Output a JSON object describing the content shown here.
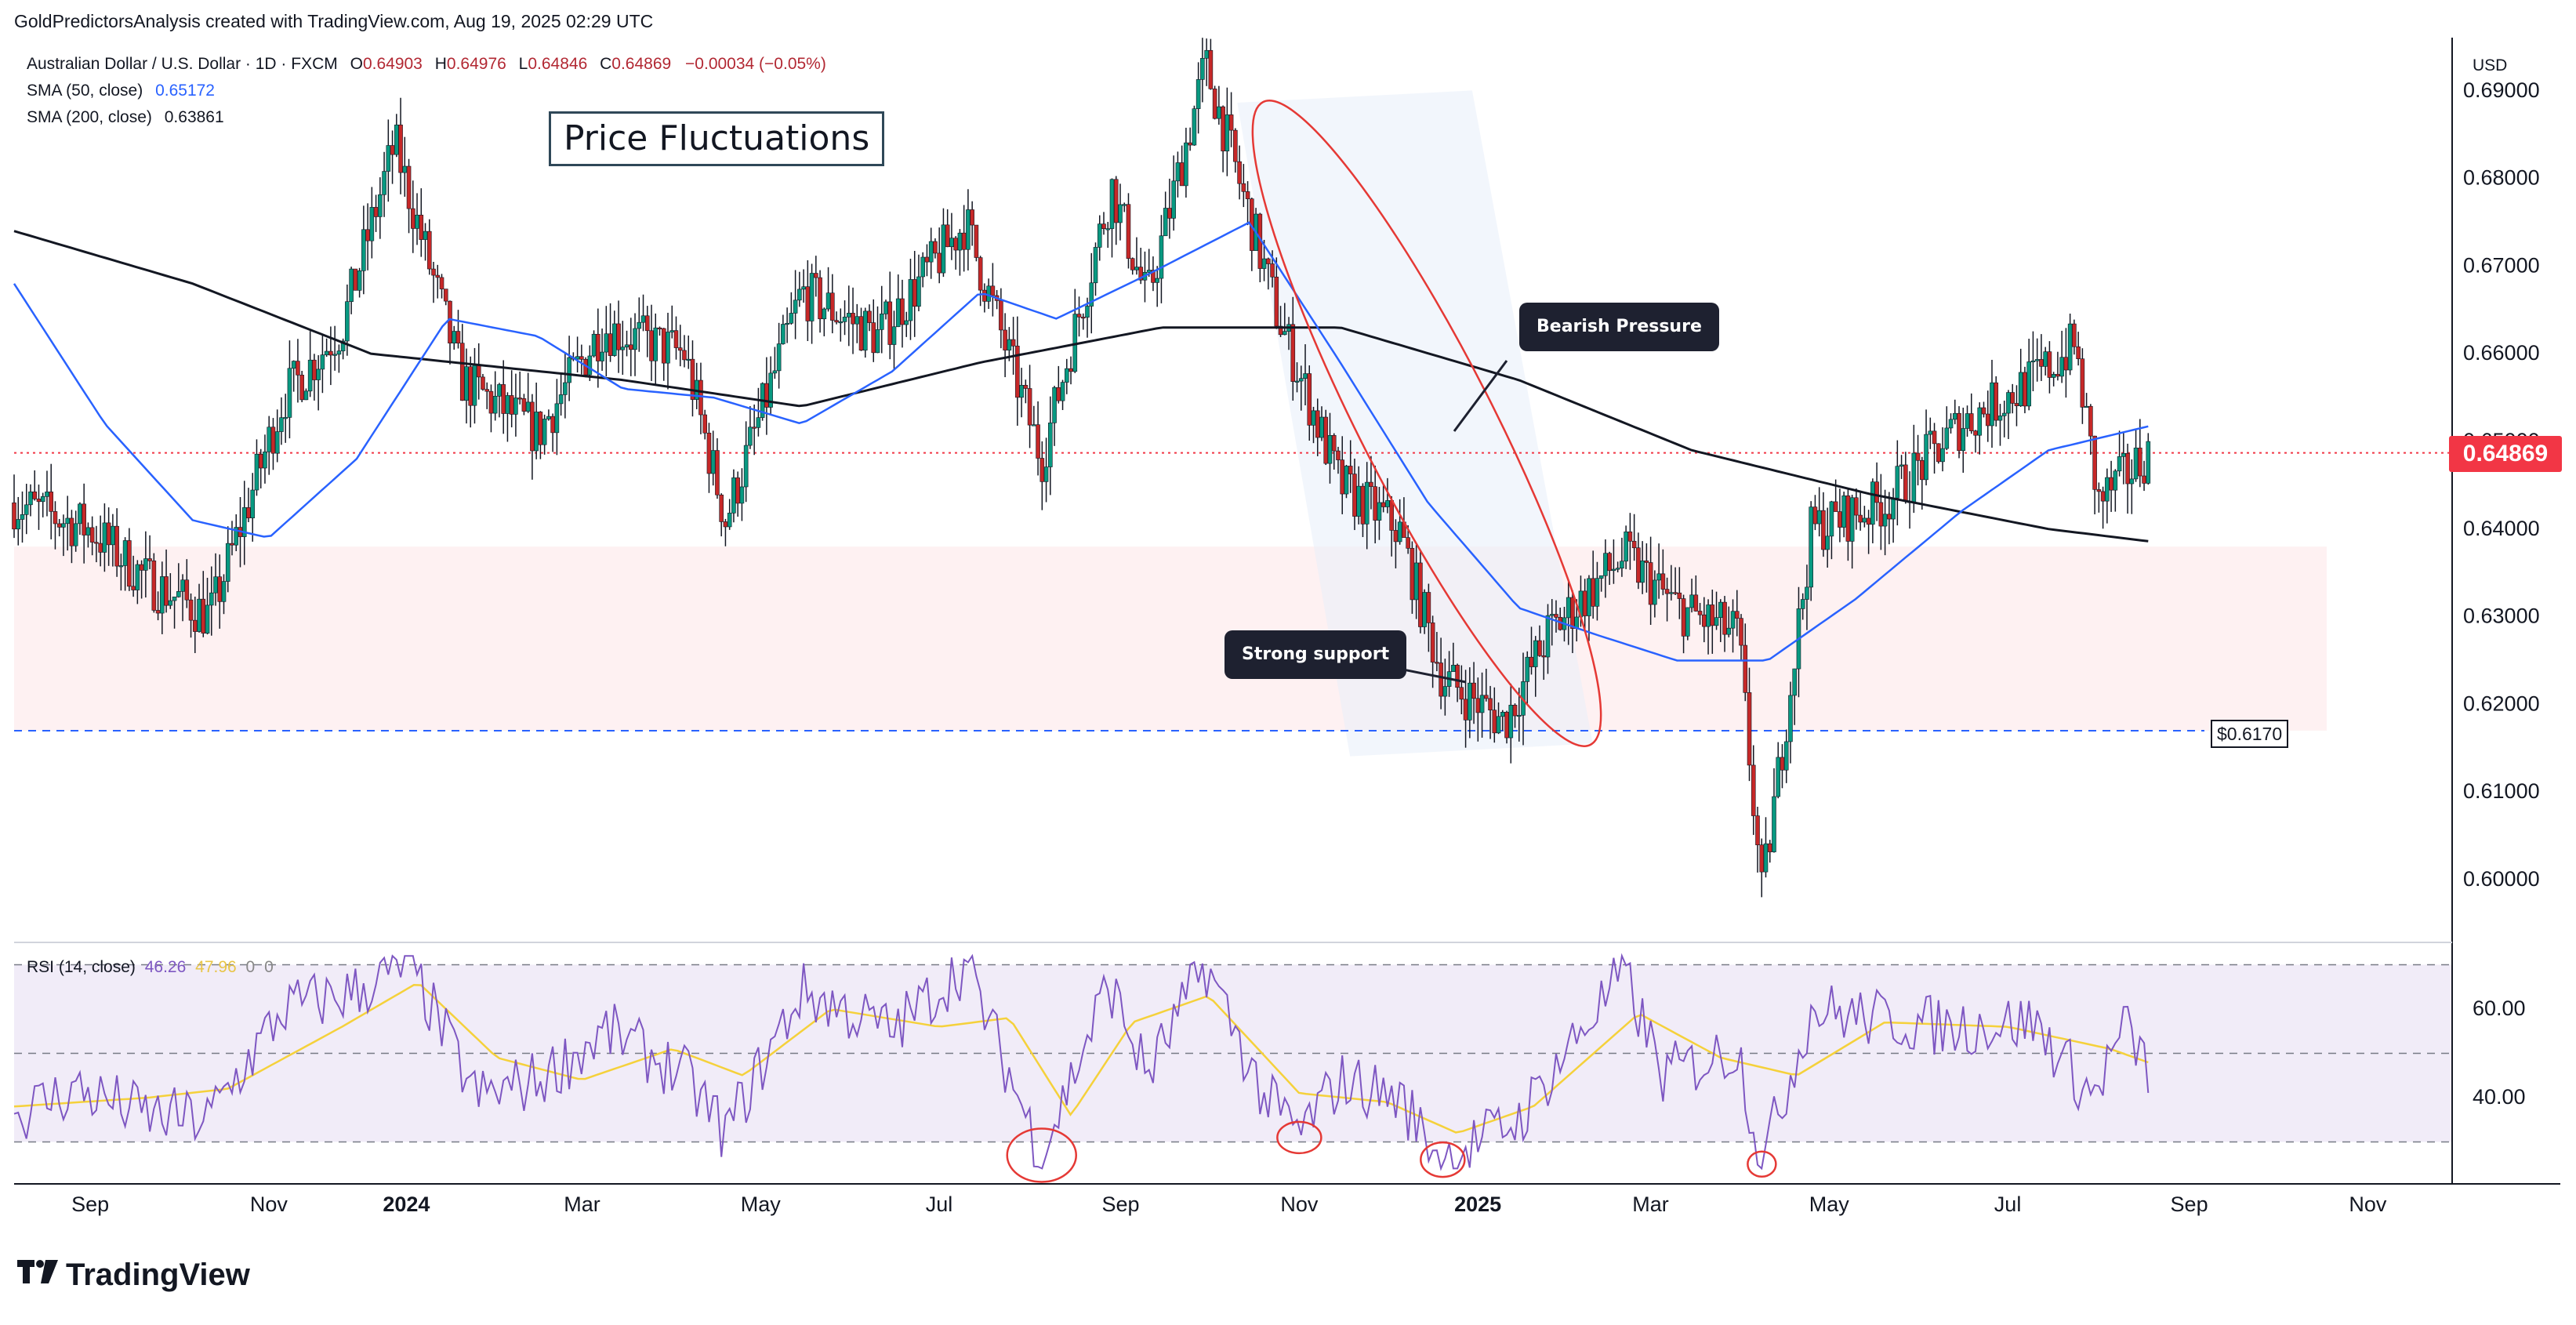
{
  "header": {
    "attribution": "GoldPredictorsAnalysis created with TradingView.com, Aug 19, 2025 02:29 UTC",
    "instrument": "Australian Dollar / U.S. Dollar · 1D · FXCM",
    "open_label": "O",
    "open": "0.64903",
    "high_label": "H",
    "high": "0.64976",
    "low_label": "L",
    "low": "0.64846",
    "close_label": "C",
    "close": "0.64869",
    "change": "−0.00034 (−0.05%)"
  },
  "indicators": {
    "sma50_label": "SMA (50, close)",
    "sma50_value": "0.65172",
    "sma200_label": "SMA (200, close)",
    "sma200_value": "0.63861"
  },
  "currency": "USD",
  "annotations": {
    "title": "Price Fluctuations",
    "bearish": "Bearish Pressure",
    "support": "Strong support",
    "support_level": "$0.6170",
    "last_price": "0.64869"
  },
  "rsi": {
    "label": "RSI (14, close)",
    "value": "46.26",
    "ma_value": "47.96",
    "extra1": "0",
    "extra2": "0"
  },
  "colors": {
    "sma50": "#2962ff",
    "sma200": "#131722",
    "up": "#089981",
    "down": "#c62828",
    "rsi": "#7e57c2",
    "rsi_ma": "#f5d13b",
    "accent_red": "#f23645"
  },
  "footer": {
    "brand": "TradingView",
    "brand_icon": "tradingview-logo-icon"
  },
  "chart_data": [
    {
      "type": "line",
      "title": "",
      "x_axis_ticks": [
        "Sep",
        "Nov",
        "2024",
        "Mar",
        "May",
        "Jul",
        "Sep",
        "Nov",
        "2025",
        "Mar",
        "May",
        "Jul",
        "Sep",
        "Nov"
      ],
      "y_axis_ticks": [
        "0.60000",
        "0.61000",
        "0.62000",
        "0.63000",
        "0.64000",
        "0.65000",
        "0.66000",
        "0.67000",
        "0.68000",
        "0.69000"
      ],
      "ylim": [
        0.593,
        0.697
      ],
      "price_anchors": {
        "description": "approximate daily close path (date, value)",
        "points": [
          [
            "2023-08-20",
            0.643
          ],
          [
            "2023-09-15",
            0.64
          ],
          [
            "2023-10-05",
            0.634
          ],
          [
            "2023-10-26",
            0.63
          ],
          [
            "2023-11-20",
            0.655
          ],
          [
            "2023-12-10",
            0.663
          ],
          [
            "2023-12-28",
            0.684
          ],
          [
            "2024-01-20",
            0.657
          ],
          [
            "2024-02-15",
            0.651
          ],
          [
            "2024-03-08",
            0.663
          ],
          [
            "2024-04-05",
            0.66
          ],
          [
            "2024-04-19",
            0.641
          ],
          [
            "2024-05-15",
            0.667
          ],
          [
            "2024-06-10",
            0.662
          ],
          [
            "2024-07-10",
            0.675
          ],
          [
            "2024-08-05",
            0.648
          ],
          [
            "2024-08-29",
            0.679
          ],
          [
            "2024-09-10",
            0.666
          ],
          [
            "2024-09-30",
            0.693
          ],
          [
            "2024-10-25",
            0.664
          ],
          [
            "2024-11-15",
            0.645
          ],
          [
            "2024-12-05",
            0.64
          ],
          [
            "2024-12-20",
            0.623
          ],
          [
            "2025-01-10",
            0.618
          ],
          [
            "2025-01-25",
            0.628
          ],
          [
            "2025-02-20",
            0.637
          ],
          [
            "2025-03-10",
            0.631
          ],
          [
            "2025-03-31",
            0.628
          ],
          [
            "2025-04-08",
            0.598
          ],
          [
            "2025-04-25",
            0.64
          ],
          [
            "2025-05-20",
            0.643
          ],
          [
            "2025-06-15",
            0.652
          ],
          [
            "2025-07-10",
            0.657
          ],
          [
            "2025-07-24",
            0.661
          ],
          [
            "2025-08-01",
            0.643
          ],
          [
            "2025-08-18",
            0.64869
          ]
        ]
      },
      "series": [
        {
          "name": "SMA (50, close)",
          "points": [
            [
              "2023-08-20",
              0.668
            ],
            [
              "2023-09-20",
              0.652
            ],
            [
              "2023-10-20",
              0.641
            ],
            [
              "2023-11-15",
              0.639
            ],
            [
              "2023-12-15",
              0.648
            ],
            [
              "2024-01-15",
              0.664
            ],
            [
              "2024-02-15",
              0.662
            ],
            [
              "2024-03-15",
              0.656
            ],
            [
              "2024-04-15",
              0.655
            ],
            [
              "2024-05-15",
              0.652
            ],
            [
              "2024-06-15",
              0.658
            ],
            [
              "2024-07-15",
              0.667
            ],
            [
              "2024-08-10",
              0.664
            ],
            [
              "2024-09-10",
              0.669
            ],
            [
              "2024-10-15",
              0.675
            ],
            [
              "2024-11-15",
              0.659
            ],
            [
              "2024-12-15",
              0.643
            ],
            [
              "2025-01-15",
              0.631
            ],
            [
              "2025-02-10",
              0.628
            ],
            [
              "2025-03-10",
              0.625
            ],
            [
              "2025-04-10",
              0.625
            ],
            [
              "2025-05-10",
              0.632
            ],
            [
              "2025-06-15",
              0.642
            ],
            [
              "2025-07-15",
              0.649
            ],
            [
              "2025-08-18",
              0.65172
            ]
          ]
        },
        {
          "name": "SMA (200, close)",
          "points": [
            [
              "2023-08-20",
              0.674
            ],
            [
              "2023-10-20",
              0.668
            ],
            [
              "2023-12-20",
              0.66
            ],
            [
              "2024-03-15",
              0.657
            ],
            [
              "2024-05-15",
              0.654
            ],
            [
              "2024-07-15",
              0.659
            ],
            [
              "2024-09-15",
              0.663
            ],
            [
              "2024-11-15",
              0.663
            ],
            [
              "2025-01-15",
              0.657
            ],
            [
              "2025-03-15",
              0.649
            ],
            [
              "2025-05-15",
              0.644
            ],
            [
              "2025-07-15",
              0.64
            ],
            [
              "2025-08-18",
              0.63861
            ]
          ]
        }
      ],
      "horizontal_lines": [
        {
          "name": "Last price",
          "value": 0.64869
        },
        {
          "name": "Support",
          "value": 0.617
        }
      ],
      "zones": [
        {
          "name": "Support zone",
          "from": 0.617,
          "to": 0.638
        }
      ]
    },
    {
      "type": "line",
      "title": "RSI (14, close)",
      "y_axis_ticks": [
        "40.00",
        "60.00"
      ],
      "ylim": [
        22,
        75
      ],
      "reference_levels": [
        30,
        50,
        70
      ],
      "series": [
        {
          "name": "RSI",
          "points": [
            [
              "2023-08-20",
              36
            ],
            [
              "2023-09-10",
              42
            ],
            [
              "2023-10-05",
              36
            ],
            [
              "2023-10-25",
              35
            ],
            [
              "2023-11-20",
              60
            ],
            [
              "2023-12-15",
              64
            ],
            [
              "2024-01-02",
              70
            ],
            [
              "2024-01-25",
              40
            ],
            [
              "2024-02-15",
              44
            ],
            [
              "2024-03-10",
              55
            ],
            [
              "2024-04-05",
              45
            ],
            [
              "2024-04-19",
              32
            ],
            [
              "2024-05-15",
              64
            ],
            [
              "2024-06-15",
              55
            ],
            [
              "2024-07-10",
              70
            ],
            [
              "2024-08-05",
              27
            ],
            [
              "2024-08-28",
              66
            ],
            [
              "2024-09-10",
              45
            ],
            [
              "2024-09-30",
              70
            ],
            [
              "2024-10-20",
              40
            ],
            [
              "2024-11-01",
              32
            ],
            [
              "2024-11-15",
              44
            ],
            [
              "2024-12-05",
              40
            ],
            [
              "2024-12-20",
              26
            ],
            [
              "2025-01-15",
              35
            ],
            [
              "2025-02-05",
              55
            ],
            [
              "2025-02-20",
              68
            ],
            [
              "2025-03-05",
              45
            ],
            [
              "2025-03-31",
              51
            ],
            [
              "2025-04-08",
              25
            ],
            [
              "2025-04-25",
              60
            ],
            [
              "2025-05-15",
              58
            ],
            [
              "2025-06-10",
              56
            ],
            [
              "2025-07-10",
              57
            ],
            [
              "2025-07-30",
              40
            ],
            [
              "2025-08-10",
              56
            ],
            [
              "2025-08-18",
              46.26
            ]
          ]
        },
        {
          "name": "RSI-based MA",
          "points": [
            [
              "2023-08-20",
              38
            ],
            [
              "2023-10-05",
              40
            ],
            [
              "2023-11-01",
              42
            ],
            [
              "2023-12-10",
              56
            ],
            [
              "2024-01-05",
              66
            ],
            [
              "2024-02-01",
              49
            ],
            [
              "2024-03-01",
              44
            ],
            [
              "2024-04-01",
              51
            ],
            [
              "2024-04-25",
              45
            ],
            [
              "2024-05-25",
              60
            ],
            [
              "2024-07-01",
              56
            ],
            [
              "2024-07-25",
              58
            ],
            [
              "2024-08-15",
              36
            ],
            [
              "2024-09-05",
              57
            ],
            [
              "2024-10-01",
              63
            ],
            [
              "2024-11-01",
              41
            ],
            [
              "2024-12-01",
              39
            ],
            [
              "2024-12-25",
              32
            ],
            [
              "2025-01-20",
              38
            ],
            [
              "2025-02-25",
              59
            ],
            [
              "2025-03-25",
              49
            ],
            [
              "2025-04-20",
              45
            ],
            [
              "2025-05-20",
              57
            ],
            [
              "2025-07-01",
              56
            ],
            [
              "2025-08-05",
              51
            ],
            [
              "2025-08-18",
              47.96
            ]
          ]
        }
      ]
    }
  ]
}
